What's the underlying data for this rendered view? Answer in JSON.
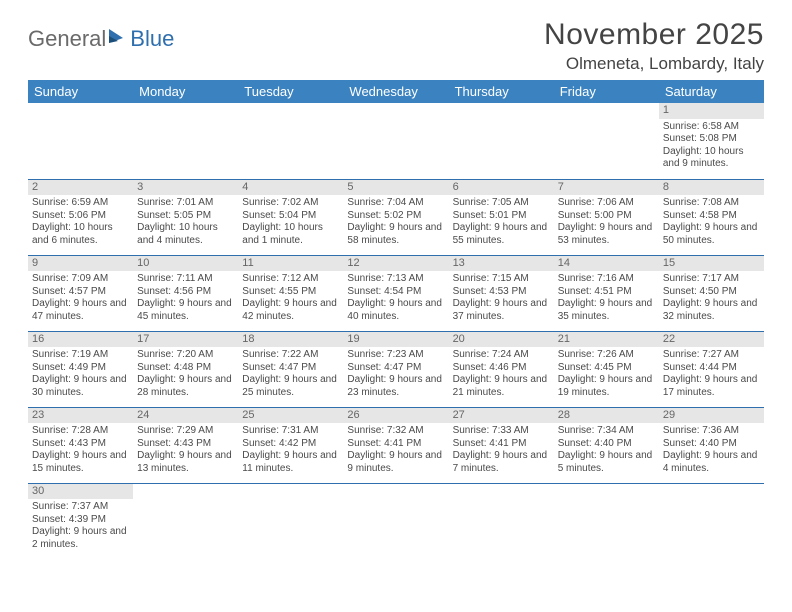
{
  "logo": {
    "part1": "General",
    "part2": "Blue"
  },
  "title": "November 2025",
  "location": "Olmeneta, Lombardy, Italy",
  "colors": {
    "header_bg": "#3b83c0",
    "row_divider": "#2f6fae",
    "daynum_bg": "#e6e6e6",
    "text": "#4a4a4a",
    "page_bg": "#ffffff"
  },
  "fonts": {
    "title_size_pt": 30,
    "location_size_pt": 17,
    "dayheader_size_pt": 13,
    "cell_size_pt": 10
  },
  "day_headers": [
    "Sunday",
    "Monday",
    "Tuesday",
    "Wednesday",
    "Thursday",
    "Friday",
    "Saturday"
  ],
  "weeks": [
    [
      null,
      null,
      null,
      null,
      null,
      null,
      {
        "n": "1",
        "sunrise": "Sunrise: 6:58 AM",
        "sunset": "Sunset: 5:08 PM",
        "daylight": "Daylight: 10 hours and 9 minutes."
      }
    ],
    [
      {
        "n": "2",
        "sunrise": "Sunrise: 6:59 AM",
        "sunset": "Sunset: 5:06 PM",
        "daylight": "Daylight: 10 hours and 6 minutes."
      },
      {
        "n": "3",
        "sunrise": "Sunrise: 7:01 AM",
        "sunset": "Sunset: 5:05 PM",
        "daylight": "Daylight: 10 hours and 4 minutes."
      },
      {
        "n": "4",
        "sunrise": "Sunrise: 7:02 AM",
        "sunset": "Sunset: 5:04 PM",
        "daylight": "Daylight: 10 hours and 1 minute."
      },
      {
        "n": "5",
        "sunrise": "Sunrise: 7:04 AM",
        "sunset": "Sunset: 5:02 PM",
        "daylight": "Daylight: 9 hours and 58 minutes."
      },
      {
        "n": "6",
        "sunrise": "Sunrise: 7:05 AM",
        "sunset": "Sunset: 5:01 PM",
        "daylight": "Daylight: 9 hours and 55 minutes."
      },
      {
        "n": "7",
        "sunrise": "Sunrise: 7:06 AM",
        "sunset": "Sunset: 5:00 PM",
        "daylight": "Daylight: 9 hours and 53 minutes."
      },
      {
        "n": "8",
        "sunrise": "Sunrise: 7:08 AM",
        "sunset": "Sunset: 4:58 PM",
        "daylight": "Daylight: 9 hours and 50 minutes."
      }
    ],
    [
      {
        "n": "9",
        "sunrise": "Sunrise: 7:09 AM",
        "sunset": "Sunset: 4:57 PM",
        "daylight": "Daylight: 9 hours and 47 minutes."
      },
      {
        "n": "10",
        "sunrise": "Sunrise: 7:11 AM",
        "sunset": "Sunset: 4:56 PM",
        "daylight": "Daylight: 9 hours and 45 minutes."
      },
      {
        "n": "11",
        "sunrise": "Sunrise: 7:12 AM",
        "sunset": "Sunset: 4:55 PM",
        "daylight": "Daylight: 9 hours and 42 minutes."
      },
      {
        "n": "12",
        "sunrise": "Sunrise: 7:13 AM",
        "sunset": "Sunset: 4:54 PM",
        "daylight": "Daylight: 9 hours and 40 minutes."
      },
      {
        "n": "13",
        "sunrise": "Sunrise: 7:15 AM",
        "sunset": "Sunset: 4:53 PM",
        "daylight": "Daylight: 9 hours and 37 minutes."
      },
      {
        "n": "14",
        "sunrise": "Sunrise: 7:16 AM",
        "sunset": "Sunset: 4:51 PM",
        "daylight": "Daylight: 9 hours and 35 minutes."
      },
      {
        "n": "15",
        "sunrise": "Sunrise: 7:17 AM",
        "sunset": "Sunset: 4:50 PM",
        "daylight": "Daylight: 9 hours and 32 minutes."
      }
    ],
    [
      {
        "n": "16",
        "sunrise": "Sunrise: 7:19 AM",
        "sunset": "Sunset: 4:49 PM",
        "daylight": "Daylight: 9 hours and 30 minutes."
      },
      {
        "n": "17",
        "sunrise": "Sunrise: 7:20 AM",
        "sunset": "Sunset: 4:48 PM",
        "daylight": "Daylight: 9 hours and 28 minutes."
      },
      {
        "n": "18",
        "sunrise": "Sunrise: 7:22 AM",
        "sunset": "Sunset: 4:47 PM",
        "daylight": "Daylight: 9 hours and 25 minutes."
      },
      {
        "n": "19",
        "sunrise": "Sunrise: 7:23 AM",
        "sunset": "Sunset: 4:47 PM",
        "daylight": "Daylight: 9 hours and 23 minutes."
      },
      {
        "n": "20",
        "sunrise": "Sunrise: 7:24 AM",
        "sunset": "Sunset: 4:46 PM",
        "daylight": "Daylight: 9 hours and 21 minutes."
      },
      {
        "n": "21",
        "sunrise": "Sunrise: 7:26 AM",
        "sunset": "Sunset: 4:45 PM",
        "daylight": "Daylight: 9 hours and 19 minutes."
      },
      {
        "n": "22",
        "sunrise": "Sunrise: 7:27 AM",
        "sunset": "Sunset: 4:44 PM",
        "daylight": "Daylight: 9 hours and 17 minutes."
      }
    ],
    [
      {
        "n": "23",
        "sunrise": "Sunrise: 7:28 AM",
        "sunset": "Sunset: 4:43 PM",
        "daylight": "Daylight: 9 hours and 15 minutes."
      },
      {
        "n": "24",
        "sunrise": "Sunrise: 7:29 AM",
        "sunset": "Sunset: 4:43 PM",
        "daylight": "Daylight: 9 hours and 13 minutes."
      },
      {
        "n": "25",
        "sunrise": "Sunrise: 7:31 AM",
        "sunset": "Sunset: 4:42 PM",
        "daylight": "Daylight: 9 hours and 11 minutes."
      },
      {
        "n": "26",
        "sunrise": "Sunrise: 7:32 AM",
        "sunset": "Sunset: 4:41 PM",
        "daylight": "Daylight: 9 hours and 9 minutes."
      },
      {
        "n": "27",
        "sunrise": "Sunrise: 7:33 AM",
        "sunset": "Sunset: 4:41 PM",
        "daylight": "Daylight: 9 hours and 7 minutes."
      },
      {
        "n": "28",
        "sunrise": "Sunrise: 7:34 AM",
        "sunset": "Sunset: 4:40 PM",
        "daylight": "Daylight: 9 hours and 5 minutes."
      },
      {
        "n": "29",
        "sunrise": "Sunrise: 7:36 AM",
        "sunset": "Sunset: 4:40 PM",
        "daylight": "Daylight: 9 hours and 4 minutes."
      }
    ],
    [
      {
        "n": "30",
        "sunrise": "Sunrise: 7:37 AM",
        "sunset": "Sunset: 4:39 PM",
        "daylight": "Daylight: 9 hours and 2 minutes."
      },
      null,
      null,
      null,
      null,
      null,
      null
    ]
  ]
}
